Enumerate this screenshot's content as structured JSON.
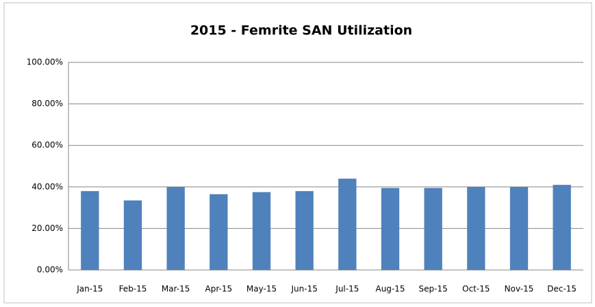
{
  "chart_data": {
    "type": "bar",
    "title": "2015 - Femrite SAN Utilization",
    "categories": [
      "Jan-15",
      "Feb-15",
      "Mar-15",
      "Apr-15",
      "May-15",
      "Jun-15",
      "Jul-15",
      "Aug-15",
      "Sep-15",
      "Oct-15",
      "Nov-15",
      "Dec-15"
    ],
    "values": [
      38,
      33.5,
      40,
      36.5,
      37.5,
      38,
      44,
      39.5,
      39.5,
      40,
      40,
      41
    ],
    "color": "#4f81bd",
    "ylim": [
      0,
      100
    ],
    "yticks": [
      {
        "value": 0,
        "label": "0.00%"
      },
      {
        "value": 20,
        "label": "20.00%"
      },
      {
        "value": 40,
        "label": "40.00%"
      },
      {
        "value": 60,
        "label": "60.00%"
      },
      {
        "value": 80,
        "label": "80.00%"
      },
      {
        "value": 100,
        "label": "100.00%"
      }
    ],
    "grid": true
  }
}
